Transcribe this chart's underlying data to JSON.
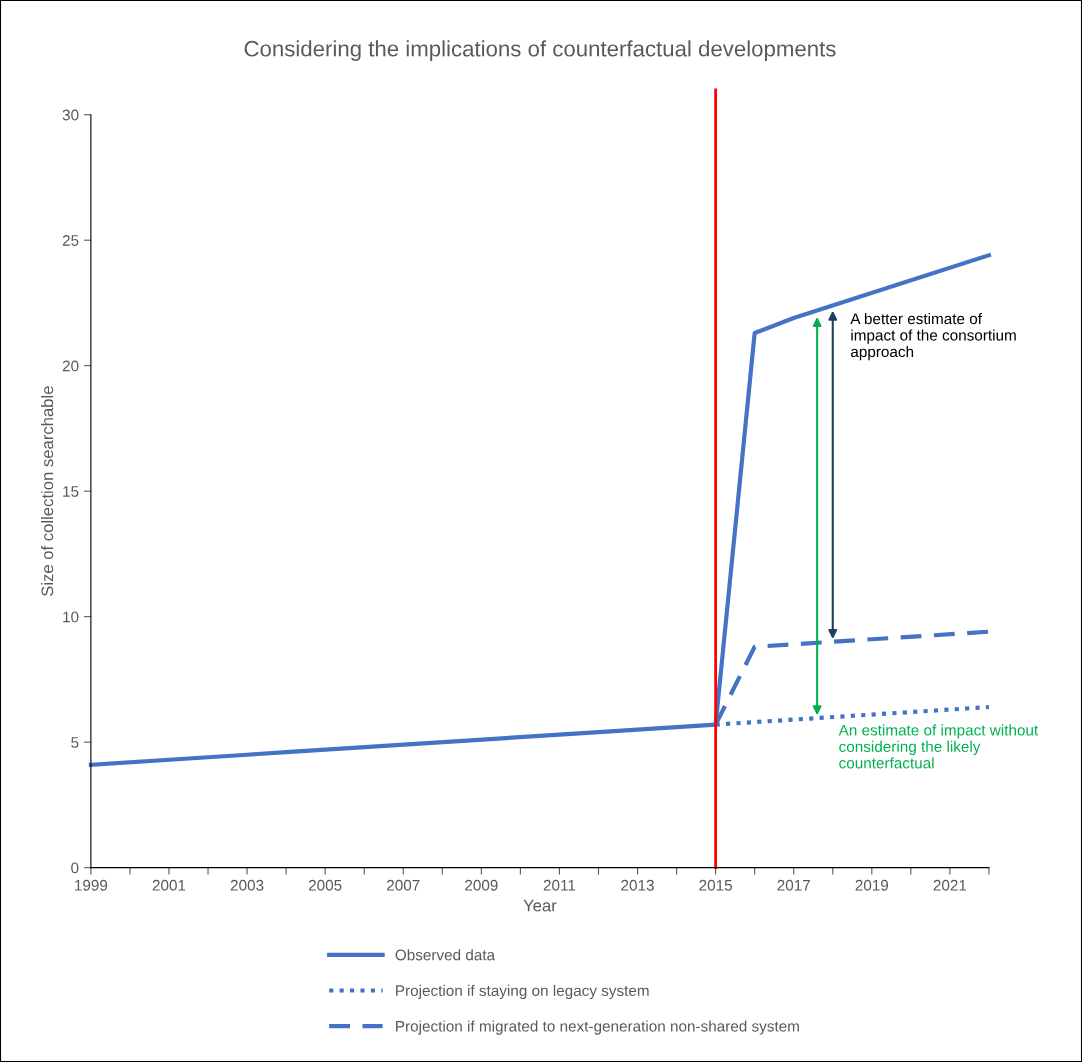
{
  "chart_data": {
    "type": "line",
    "title": "Considering the implications of counterfactual developments",
    "xlabel": "Year",
    "ylabel": "Size of collection searchable",
    "series": [
      {
        "name": "Observed data",
        "color": "#4472c4",
        "line_style": "solid",
        "x": [
          1999,
          2003,
          2004,
          2011,
          2015,
          2016,
          2017,
          2022
        ],
        "values": [
          4.1,
          4.5,
          4.6,
          5.3,
          5.7,
          21.3,
          21.9,
          24.4
        ]
      },
      {
        "name": "Projection if staying on legacy system",
        "color": "#4472c4",
        "line_style": "dotted",
        "x": [
          2015,
          2022
        ],
        "values": [
          5.7,
          6.4
        ]
      },
      {
        "name": "Projection if migrated to next-generation non-shared system",
        "color": "#4472c4",
        "line_style": "dashed",
        "x": [
          2015,
          2016,
          2022
        ],
        "values": [
          5.7,
          8.8,
          9.4
        ]
      }
    ],
    "annotations": [
      {
        "text": "A better estimate of\nimpact of the consortium\napproach",
        "x": 2018,
        "y": 22.3
      },
      {
        "text": "An estimate of impact without\nconsidering the likely\ncounterfactual",
        "x": 2017.6,
        "y": 5.96
      }
    ],
    "ref_lines": [
      {
        "axis": "x",
        "value": 2015,
        "color": "#ff0000"
      }
    ],
    "xlim": [
      1999,
      2022
    ],
    "ylim": [
      0,
      30
    ],
    "xticks": [
      1999,
      {
        "value": 2000,
        "label": null
      },
      2001,
      {
        "value": 2002,
        "label": null
      },
      2003,
      {
        "value": 2004,
        "label": null
      },
      2005,
      {
        "value": 2006,
        "label": null
      },
      2007,
      {
        "value": 2008,
        "label": null
      },
      2009,
      {
        "value": 2010,
        "label": null
      },
      2011,
      {
        "value": 2012,
        "label": null
      },
      2013,
      {
        "value": 2014,
        "label": null
      },
      2015,
      {
        "value": 2016,
        "label": null
      },
      2017,
      {
        "value": 2018,
        "label": null
      },
      2019,
      {
        "value": 2020,
        "label": null
      },
      2021,
      {
        "value": 2022,
        "label": null
      }
    ],
    "yticks": [
      0,
      5,
      10,
      15,
      20,
      25,
      30
    ],
    "grid": false,
    "legend": "bottom"
  }
}
